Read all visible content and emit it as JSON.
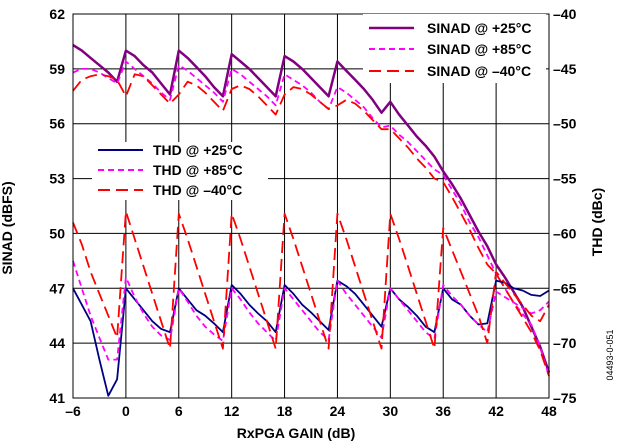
{
  "chart_data": {
    "type": "line",
    "xlabel": "RxPGA GAIN (dB)",
    "ylabel": "SINAD (dBFS)",
    "y2label": "THD (dBc)",
    "figure_id": "04493-0-051",
    "xlim": [
      -6,
      48
    ],
    "ylim": [
      41,
      62
    ],
    "y2lim": [
      -75,
      -40
    ],
    "x_ticks": [
      "–6",
      "0",
      "6",
      "12",
      "18",
      "24",
      "30",
      "36",
      "42",
      "48"
    ],
    "x_tick_values": [
      -6,
      0,
      6,
      12,
      18,
      24,
      30,
      36,
      42,
      48
    ],
    "y_ticks": [
      "41",
      "44",
      "47",
      "50",
      "53",
      "56",
      "59",
      "62"
    ],
    "y_tick_values": [
      41,
      44,
      47,
      50,
      53,
      56,
      59,
      62
    ],
    "y2_ticks": [
      "–75",
      "–70",
      "–65",
      "–60",
      "–55",
      "–50",
      "–45",
      "–40"
    ],
    "y2_tick_values": [
      -75,
      -70,
      -65,
      -60,
      -55,
      -50,
      -45,
      -40
    ],
    "grid": true,
    "legend_sinad_position": "top-right",
    "legend_thd_position": "middle-left",
    "series": [
      {
        "name": "SINAD @ +25°C",
        "axis": "left",
        "color": "#800080",
        "style": "solid",
        "x": [
          -6,
          -5,
          -4,
          -3,
          -2,
          -1,
          0,
          1,
          2,
          3,
          4,
          5,
          6,
          7,
          8,
          9,
          10,
          11,
          12,
          13,
          14,
          15,
          16,
          17,
          18,
          19,
          20,
          21,
          22,
          23,
          24,
          25,
          26,
          27,
          28,
          29,
          30,
          31,
          32,
          33,
          34,
          35,
          36,
          37,
          38,
          39,
          40,
          41,
          42,
          43,
          44,
          45,
          46,
          47,
          48
        ],
        "y": [
          60.3,
          60.0,
          59.6,
          59.2,
          58.8,
          58.3,
          60.0,
          59.7,
          59.2,
          58.8,
          58.2,
          57.6,
          60.0,
          59.6,
          59.1,
          58.6,
          58.0,
          57.5,
          59.8,
          59.4,
          59.0,
          58.5,
          58.0,
          57.5,
          59.7,
          59.4,
          59.0,
          58.5,
          58.0,
          57.5,
          59.4,
          58.9,
          58.4,
          57.9,
          57.3,
          56.6,
          57.2,
          56.5,
          55.9,
          55.3,
          54.8,
          54.2,
          53.4,
          52.7,
          51.9,
          51.0,
          50.1,
          49.3,
          48.3,
          47.6,
          46.8,
          46.0,
          44.9,
          43.8,
          42.4
        ]
      },
      {
        "name": "SINAD @ +85°C",
        "axis": "left",
        "color": "#ff00ff",
        "style": "dashed",
        "x": [
          -6,
          -5,
          -4,
          -3,
          -2,
          -1,
          0,
          1,
          2,
          3,
          4,
          5,
          6,
          7,
          8,
          9,
          10,
          11,
          12,
          13,
          14,
          15,
          16,
          17,
          18,
          19,
          20,
          21,
          22,
          23,
          24,
          25,
          26,
          27,
          28,
          29,
          30,
          31,
          32,
          33,
          34,
          35,
          36,
          37,
          38,
          39,
          40,
          41,
          42,
          43,
          44,
          45,
          46,
          47,
          48
        ],
        "y": [
          58.8,
          59.0,
          59.0,
          58.8,
          58.5,
          58.2,
          59.4,
          59.0,
          58.6,
          58.2,
          57.7,
          57.3,
          59.2,
          58.9,
          58.5,
          58.1,
          57.7,
          57.2,
          59.0,
          58.7,
          58.3,
          57.9,
          57.5,
          57.0,
          58.7,
          58.4,
          58.1,
          57.7,
          57.2,
          56.8,
          58.0,
          57.7,
          57.3,
          56.9,
          56.3,
          55.8,
          55.9,
          55.4,
          55.0,
          54.5,
          54.0,
          53.5,
          53.2,
          52.4,
          51.6,
          50.6,
          49.8,
          48.8,
          47.8,
          47.0,
          46.2,
          45.6,
          45.0,
          43.8,
          42.2
        ]
      },
      {
        "name": "SINAD @ –40°C",
        "axis": "left",
        "color": "#ff0000",
        "style": "longdash",
        "x": [
          -6,
          -5,
          -4,
          -3,
          -2,
          -1,
          0,
          1,
          2,
          3,
          4,
          5,
          6,
          7,
          8,
          9,
          10,
          11,
          12,
          13,
          14,
          15,
          16,
          17,
          18,
          19,
          20,
          21,
          22,
          23,
          24,
          25,
          26,
          27,
          28,
          29,
          30,
          31,
          32,
          33,
          34,
          35,
          36,
          37,
          38,
          39,
          40,
          41,
          42,
          43,
          44,
          45,
          46,
          47,
          48
        ],
        "y": [
          57.8,
          58.4,
          58.6,
          58.7,
          58.6,
          58.4,
          57.5,
          58.7,
          58.6,
          58.1,
          57.6,
          57.1,
          57.6,
          58.3,
          58.1,
          57.7,
          57.2,
          56.7,
          57.9,
          58.1,
          57.9,
          57.5,
          57.0,
          56.5,
          57.6,
          58.0,
          57.9,
          57.6,
          57.2,
          56.8,
          57.0,
          57.3,
          57.1,
          56.7,
          56.2,
          55.7,
          55.7,
          55.2,
          54.7,
          54.1,
          53.6,
          53.0,
          52.8,
          52.0,
          51.1,
          50.2,
          49.2,
          48.3,
          47.8,
          47.0,
          46.2,
          45.4,
          44.6,
          43.6,
          42.2
        ]
      },
      {
        "name": "THD @ +25°C",
        "axis": "right",
        "color": "#000080",
        "style": "solid",
        "x": [
          -6,
          -5,
          -4,
          -3,
          -2,
          -1,
          0,
          1,
          2,
          3,
          4,
          5,
          6,
          7,
          8,
          9,
          10,
          11,
          12,
          13,
          14,
          15,
          16,
          17,
          18,
          19,
          20,
          21,
          22,
          23,
          24,
          25,
          26,
          27,
          28,
          29,
          30,
          31,
          32,
          33,
          34,
          35,
          36,
          37,
          38,
          39,
          40,
          41,
          42,
          43,
          44,
          45,
          46,
          47,
          48
        ],
        "y": [
          -65,
          -66.5,
          -68,
          -71.5,
          -74.8,
          -73.3,
          -65,
          -66,
          -67,
          -68,
          -68.7,
          -69,
          -65,
          -66,
          -67,
          -67.5,
          -68.2,
          -69,
          -64.7,
          -65.5,
          -66.5,
          -67.3,
          -68,
          -69,
          -64.7,
          -65.5,
          -66.5,
          -67.2,
          -68,
          -68.8,
          -64.3,
          -64.8,
          -65.5,
          -66.5,
          -67.5,
          -68.5,
          -65,
          -66,
          -66.7,
          -67.5,
          -68.5,
          -69,
          -65,
          -66,
          -66.5,
          -67.5,
          -68.3,
          -68.2,
          -64.3,
          -64.5,
          -65,
          -65.2,
          -65.6,
          -65.7,
          -65.2
        ]
      },
      {
        "name": "THD @ +85°C",
        "axis": "right",
        "color": "#ff00ff",
        "style": "dashed",
        "x": [
          -6,
          -5,
          -4,
          -3,
          -2,
          -1,
          0,
          1,
          2,
          3,
          4,
          5,
          6,
          7,
          8,
          9,
          10,
          11,
          12,
          13,
          14,
          15,
          16,
          17,
          18,
          19,
          20,
          21,
          22,
          23,
          24,
          25,
          26,
          27,
          28,
          29,
          30,
          31,
          32,
          33,
          34,
          35,
          36,
          37,
          38,
          39,
          40,
          41,
          42,
          43,
          44,
          45,
          46,
          47,
          48
        ],
        "y": [
          -62.5,
          -65,
          -67.5,
          -69.5,
          -71.5,
          -71.5,
          -64,
          -65.8,
          -67.3,
          -68.5,
          -69.3,
          -69.7,
          -65,
          -66.2,
          -67.5,
          -68.5,
          -69.2,
          -69.8,
          -65,
          -66,
          -67.2,
          -68.2,
          -69,
          -69.8,
          -65,
          -66,
          -67,
          -68,
          -69,
          -69.7,
          -64.3,
          -65.5,
          -66.5,
          -67.5,
          -68.5,
          -69.5,
          -65,
          -66,
          -67,
          -68,
          -69,
          -69.6,
          -64.7,
          -65.7,
          -66.5,
          -67.5,
          -68.3,
          -69,
          -65.3,
          -65.8,
          -66.3,
          -66.8,
          -67.3,
          -67,
          -66.2
        ]
      },
      {
        "name": "THD @ –40°C",
        "axis": "right",
        "color": "#ff0000",
        "style": "longdash",
        "x": [
          -6,
          -5,
          -4,
          -3,
          -2,
          -1,
          0,
          1,
          2,
          3,
          4,
          5,
          6,
          7,
          8,
          9,
          10,
          11,
          12,
          13,
          14,
          15,
          16,
          17,
          18,
          19,
          20,
          21,
          22,
          23,
          24,
          25,
          26,
          27,
          28,
          29,
          30,
          31,
          32,
          33,
          34,
          35,
          36,
          37,
          38,
          39,
          40,
          41,
          42,
          43,
          44,
          45,
          46,
          47,
          48
        ],
        "y": [
          -59,
          -61,
          -63.5,
          -65.5,
          -67.5,
          -69.5,
          -58,
          -60.5,
          -63,
          -65.5,
          -68,
          -70.5,
          -58.2,
          -60.5,
          -63,
          -65.5,
          -68,
          -70.5,
          -58.2,
          -60.5,
          -63,
          -65.5,
          -68,
          -70.5,
          -58.2,
          -60.5,
          -63,
          -65.5,
          -68,
          -70.5,
          -58.2,
          -60.5,
          -63,
          -65.5,
          -68,
          -70.5,
          -58.2,
          -60.5,
          -63,
          -65.5,
          -68,
          -70.5,
          -59.5,
          -61.5,
          -63.5,
          -65.5,
          -67.5,
          -70,
          -63.5,
          -64.5,
          -65.5,
          -66.5,
          -67.5,
          -68,
          -66.5
        ]
      }
    ]
  }
}
